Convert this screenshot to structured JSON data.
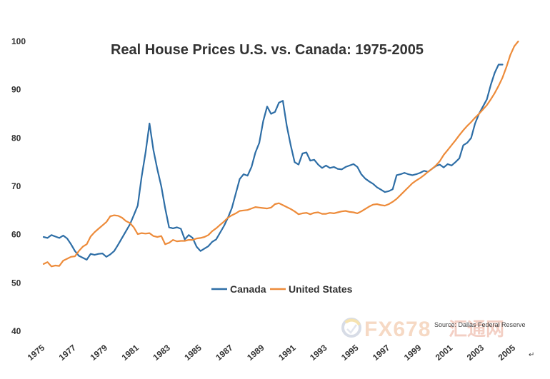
{
  "chart_data": {
    "type": "line",
    "title": "Real House Prices U.S. vs. Canada: 1975-2005",
    "xlabel": "",
    "ylabel": "",
    "xlim": [
      1975,
      2005.5
    ],
    "ylim": [
      40,
      100
    ],
    "yticks": [
      "40",
      "50",
      "60",
      "70",
      "80",
      "90",
      "100"
    ],
    "xticks": [
      "1975",
      "1977",
      "1979",
      "1981",
      "1983",
      "1985",
      "1987",
      "1989",
      "1991",
      "1993",
      "1995",
      "1997",
      "1999",
      "2001",
      "2003",
      "2005"
    ],
    "grid": false,
    "legend_position": "center",
    "annotations": {
      "source": "Source: Dallas Federal Reserve",
      "corner_mark": "↵"
    },
    "series": [
      {
        "name": "Canada",
        "color": "#2E6EA6",
        "points": [
          [
            1975.0,
            59.5
          ],
          [
            1975.25,
            59.3
          ],
          [
            1975.5,
            59.9
          ],
          [
            1975.75,
            59.6
          ],
          [
            1976.0,
            59.3
          ],
          [
            1976.25,
            59.8
          ],
          [
            1976.5,
            59.2
          ],
          [
            1976.75,
            58.0
          ],
          [
            1977.0,
            56.6
          ],
          [
            1977.25,
            55.6
          ],
          [
            1977.5,
            55.2
          ],
          [
            1977.75,
            54.8
          ],
          [
            1978.0,
            56.0
          ],
          [
            1978.25,
            55.8
          ],
          [
            1978.5,
            56.0
          ],
          [
            1978.75,
            56.1
          ],
          [
            1979.0,
            55.4
          ],
          [
            1979.25,
            55.9
          ],
          [
            1979.5,
            56.6
          ],
          [
            1979.75,
            57.9
          ],
          [
            1980.0,
            59.3
          ],
          [
            1980.25,
            60.7
          ],
          [
            1980.5,
            62.1
          ],
          [
            1980.75,
            64.0
          ],
          [
            1981.0,
            66.0
          ],
          [
            1981.25,
            72.0
          ],
          [
            1981.5,
            77.0
          ],
          [
            1981.75,
            83.0
          ],
          [
            1982.0,
            77.5
          ],
          [
            1982.25,
            73.5
          ],
          [
            1982.5,
            70.0
          ],
          [
            1982.75,
            65.5
          ],
          [
            1983.0,
            61.5
          ],
          [
            1983.25,
            61.3
          ],
          [
            1983.5,
            61.5
          ],
          [
            1983.75,
            61.2
          ],
          [
            1984.0,
            59.0
          ],
          [
            1984.25,
            59.9
          ],
          [
            1984.5,
            59.3
          ],
          [
            1984.75,
            57.5
          ],
          [
            1985.0,
            56.6
          ],
          [
            1985.25,
            57.1
          ],
          [
            1985.5,
            57.6
          ],
          [
            1985.75,
            58.5
          ],
          [
            1986.0,
            59.0
          ],
          [
            1986.25,
            60.4
          ],
          [
            1986.5,
            61.8
          ],
          [
            1986.75,
            63.5
          ],
          [
            1987.0,
            65.5
          ],
          [
            1987.25,
            68.5
          ],
          [
            1987.5,
            71.5
          ],
          [
            1987.75,
            72.5
          ],
          [
            1988.0,
            72.2
          ],
          [
            1988.25,
            74.0
          ],
          [
            1988.5,
            77.0
          ],
          [
            1988.75,
            79.0
          ],
          [
            1989.0,
            83.5
          ],
          [
            1989.25,
            86.5
          ],
          [
            1989.5,
            85.0
          ],
          [
            1989.75,
            85.4
          ],
          [
            1990.0,
            87.3
          ],
          [
            1990.25,
            87.7
          ],
          [
            1990.5,
            82.5
          ],
          [
            1990.75,
            78.5
          ],
          [
            1991.0,
            75.0
          ],
          [
            1991.25,
            74.5
          ],
          [
            1991.5,
            76.8
          ],
          [
            1991.75,
            77.0
          ],
          [
            1992.0,
            75.3
          ],
          [
            1992.25,
            75.5
          ],
          [
            1992.5,
            74.5
          ],
          [
            1992.75,
            73.8
          ],
          [
            1993.0,
            74.3
          ],
          [
            1993.25,
            73.8
          ],
          [
            1993.5,
            74.0
          ],
          [
            1993.75,
            73.6
          ],
          [
            1994.0,
            73.5
          ],
          [
            1994.25,
            74.0
          ],
          [
            1994.5,
            74.3
          ],
          [
            1994.75,
            74.6
          ],
          [
            1995.0,
            74.0
          ],
          [
            1995.25,
            72.5
          ],
          [
            1995.5,
            71.6
          ],
          [
            1995.75,
            71.0
          ],
          [
            1996.0,
            70.5
          ],
          [
            1996.25,
            69.8
          ],
          [
            1996.5,
            69.3
          ],
          [
            1996.75,
            68.8
          ],
          [
            1997.0,
            69.0
          ],
          [
            1997.25,
            69.4
          ],
          [
            1997.5,
            72.3
          ],
          [
            1997.75,
            72.5
          ],
          [
            1998.0,
            72.8
          ],
          [
            1998.25,
            72.5
          ],
          [
            1998.5,
            72.3
          ],
          [
            1998.75,
            72.5
          ],
          [
            1999.0,
            72.8
          ],
          [
            1999.25,
            73.2
          ],
          [
            1999.5,
            73.0
          ],
          [
            1999.75,
            73.6
          ],
          [
            2000.0,
            74.2
          ],
          [
            2000.25,
            74.5
          ],
          [
            2000.5,
            73.9
          ],
          [
            2000.75,
            74.6
          ],
          [
            2001.0,
            74.3
          ],
          [
            2001.25,
            75.0
          ],
          [
            2001.5,
            75.8
          ],
          [
            2001.75,
            78.5
          ],
          [
            2002.0,
            79.0
          ],
          [
            2002.25,
            80.0
          ],
          [
            2002.5,
            83.0
          ],
          [
            2002.75,
            85.0
          ],
          [
            2003.0,
            86.5
          ],
          [
            2003.25,
            88.0
          ],
          [
            2003.5,
            91.0
          ],
          [
            2003.75,
            93.5
          ],
          [
            2004.0,
            95.2
          ],
          [
            2004.25,
            95.2
          ]
        ]
      },
      {
        "name": "United States",
        "color": "#ED8B3A",
        "points": [
          [
            1975.0,
            53.9
          ],
          [
            1975.25,
            54.3
          ],
          [
            1975.5,
            53.4
          ],
          [
            1975.75,
            53.6
          ],
          [
            1976.0,
            53.5
          ],
          [
            1976.25,
            54.6
          ],
          [
            1976.5,
            55.0
          ],
          [
            1976.75,
            55.4
          ],
          [
            1977.0,
            55.5
          ],
          [
            1977.25,
            56.6
          ],
          [
            1977.5,
            57.5
          ],
          [
            1977.75,
            58.0
          ],
          [
            1978.0,
            59.6
          ],
          [
            1978.25,
            60.5
          ],
          [
            1978.5,
            61.2
          ],
          [
            1978.75,
            61.9
          ],
          [
            1979.0,
            62.6
          ],
          [
            1979.25,
            63.8
          ],
          [
            1979.5,
            64.0
          ],
          [
            1979.75,
            63.9
          ],
          [
            1980.0,
            63.5
          ],
          [
            1980.25,
            62.8
          ],
          [
            1980.5,
            62.4
          ],
          [
            1980.75,
            61.5
          ],
          [
            1981.0,
            60.1
          ],
          [
            1981.25,
            60.3
          ],
          [
            1981.5,
            60.2
          ],
          [
            1981.75,
            60.3
          ],
          [
            1982.0,
            59.7
          ],
          [
            1982.25,
            59.5
          ],
          [
            1982.5,
            59.7
          ],
          [
            1982.75,
            58.0
          ],
          [
            1983.0,
            58.3
          ],
          [
            1983.25,
            58.9
          ],
          [
            1983.5,
            58.6
          ],
          [
            1983.75,
            58.7
          ],
          [
            1984.0,
            58.7
          ],
          [
            1984.25,
            58.9
          ],
          [
            1984.5,
            58.9
          ],
          [
            1984.75,
            59.2
          ],
          [
            1985.0,
            59.3
          ],
          [
            1985.25,
            59.5
          ],
          [
            1985.5,
            59.9
          ],
          [
            1985.75,
            60.7
          ],
          [
            1986.0,
            61.3
          ],
          [
            1986.25,
            62.0
          ],
          [
            1986.5,
            62.7
          ],
          [
            1986.75,
            63.5
          ],
          [
            1987.0,
            64.0
          ],
          [
            1987.25,
            64.4
          ],
          [
            1987.5,
            64.9
          ],
          [
            1987.75,
            65.0
          ],
          [
            1988.0,
            65.1
          ],
          [
            1988.25,
            65.4
          ],
          [
            1988.5,
            65.7
          ],
          [
            1988.75,
            65.6
          ],
          [
            1989.0,
            65.5
          ],
          [
            1989.25,
            65.4
          ],
          [
            1989.5,
            65.6
          ],
          [
            1989.75,
            66.3
          ],
          [
            1990.0,
            66.5
          ],
          [
            1990.25,
            66.1
          ],
          [
            1990.5,
            65.7
          ],
          [
            1990.75,
            65.3
          ],
          [
            1991.0,
            64.8
          ],
          [
            1991.25,
            64.2
          ],
          [
            1991.5,
            64.4
          ],
          [
            1991.75,
            64.5
          ],
          [
            1992.0,
            64.2
          ],
          [
            1992.25,
            64.5
          ],
          [
            1992.5,
            64.6
          ],
          [
            1992.75,
            64.3
          ],
          [
            1993.0,
            64.3
          ],
          [
            1993.25,
            64.5
          ],
          [
            1993.5,
            64.4
          ],
          [
            1993.75,
            64.6
          ],
          [
            1994.0,
            64.8
          ],
          [
            1994.25,
            64.9
          ],
          [
            1994.5,
            64.7
          ],
          [
            1994.75,
            64.6
          ],
          [
            1995.0,
            64.4
          ],
          [
            1995.25,
            64.8
          ],
          [
            1995.5,
            65.3
          ],
          [
            1995.75,
            65.8
          ],
          [
            1996.0,
            66.2
          ],
          [
            1996.25,
            66.3
          ],
          [
            1996.5,
            66.1
          ],
          [
            1996.75,
            66.0
          ],
          [
            1997.0,
            66.3
          ],
          [
            1997.25,
            66.8
          ],
          [
            1997.5,
            67.4
          ],
          [
            1997.75,
            68.2
          ],
          [
            1998.0,
            69.0
          ],
          [
            1998.25,
            69.8
          ],
          [
            1998.5,
            70.6
          ],
          [
            1998.75,
            71.2
          ],
          [
            1999.0,
            71.7
          ],
          [
            1999.25,
            72.3
          ],
          [
            1999.5,
            73.0
          ],
          [
            1999.75,
            73.6
          ],
          [
            2000.0,
            74.3
          ],
          [
            2000.25,
            75.2
          ],
          [
            2000.5,
            76.5
          ],
          [
            2000.75,
            77.5
          ],
          [
            2001.0,
            78.5
          ],
          [
            2001.25,
            79.5
          ],
          [
            2001.5,
            80.6
          ],
          [
            2001.75,
            81.6
          ],
          [
            2002.0,
            82.5
          ],
          [
            2002.25,
            83.3
          ],
          [
            2002.5,
            84.2
          ],
          [
            2002.75,
            85.0
          ],
          [
            2003.0,
            85.9
          ],
          [
            2003.25,
            86.8
          ],
          [
            2003.5,
            88.0
          ],
          [
            2003.75,
            89.3
          ],
          [
            2004.0,
            90.8
          ],
          [
            2004.25,
            92.5
          ],
          [
            2004.5,
            94.7
          ],
          [
            2004.75,
            97.2
          ],
          [
            2005.0,
            99.0
          ],
          [
            2005.25,
            100.0
          ]
        ]
      }
    ]
  },
  "watermark": {
    "text_latin": "FX678",
    "text_cjk": "汇通网",
    "colors": {
      "latin": "#F6D9C4",
      "cjk": "#F3CFC4",
      "ring": "#D7DCE6",
      "ring_accent": "#F6E3B0"
    }
  }
}
